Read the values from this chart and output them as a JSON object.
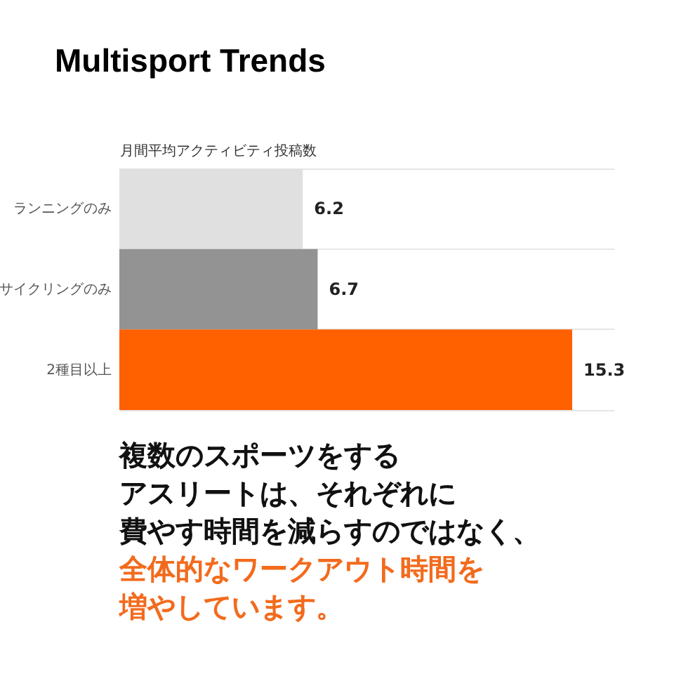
{
  "chart_data": {
    "type": "bar",
    "orientation": "horizontal",
    "title": "Multisport Trends",
    "xlabel": "月間平均アクティビティ投稿数",
    "categories": [
      "ランニングのみ",
      "サイクリングのみ",
      "2種目以上"
    ],
    "values": [
      6.2,
      6.7,
      15.3
    ],
    "colors": [
      "#e0e0e0",
      "#939393",
      "#ff6000"
    ],
    "xlim": [
      0,
      16.7
    ],
    "data_labels": true,
    "grid": "y",
    "tick_labels": "y",
    "annotations": [
      "複数のスポーツをする",
      "アスリートは、それぞれに",
      "費やす時間を減らすのではなく、",
      "全体的なワークアウト時間を",
      "増やしています。"
    ]
  }
}
